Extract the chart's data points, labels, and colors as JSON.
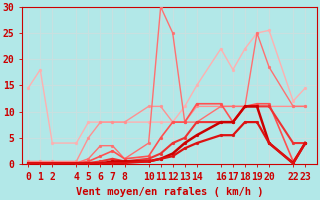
{
  "xlabel": "Vent moyen/en rafales ( km/h )",
  "background_color": "#b2e8e8",
  "grid_color": "#c8e0e0",
  "x_ticks": [
    0,
    1,
    2,
    4,
    5,
    6,
    7,
    8,
    10,
    11,
    12,
    13,
    14,
    16,
    17,
    18,
    19,
    20,
    22,
    23
  ],
  "x_values": [
    0,
    1,
    2,
    4,
    5,
    6,
    7,
    8,
    10,
    11,
    12,
    13,
    14,
    16,
    17,
    18,
    19,
    20,
    22,
    23
  ],
  "series": [
    {
      "y": [
        14.5,
        18.0,
        4.0,
        4.0,
        8.0,
        8.0,
        8.0,
        8.0,
        8.0,
        8.0,
        8.0,
        11.0,
        15.0,
        22.0,
        18.0,
        22.0,
        25.0,
        25.5,
        12.0,
        14.5
      ],
      "color": "#ffb0b0",
      "lw": 1.0
    },
    {
      "y": [
        0.5,
        0.5,
        0.5,
        0.5,
        5.0,
        8.0,
        8.0,
        8.0,
        11.0,
        11.0,
        8.0,
        8.0,
        11.0,
        11.0,
        11.0,
        11.0,
        11.0,
        11.0,
        11.0,
        11.0
      ],
      "color": "#ff9090",
      "lw": 1.0
    },
    {
      "y": [
        0.2,
        0.2,
        0.2,
        0.2,
        1.0,
        3.5,
        3.5,
        1.0,
        4.0,
        30.0,
        25.0,
        8.0,
        8.0,
        11.0,
        11.0,
        11.0,
        25.0,
        18.5,
        11.0,
        11.0
      ],
      "color": "#ff7070",
      "lw": 1.0
    },
    {
      "y": [
        0.2,
        0.2,
        0.2,
        0.2,
        0.5,
        1.5,
        2.5,
        1.0,
        1.5,
        5.0,
        8.0,
        8.0,
        11.5,
        11.5,
        8.0,
        11.0,
        11.5,
        11.5,
        0.5,
        4.0
      ],
      "color": "#ff5050",
      "lw": 1.2
    },
    {
      "y": [
        0.2,
        0.2,
        0.2,
        0.2,
        0.2,
        0.5,
        1.0,
        0.5,
        1.0,
        2.0,
        4.0,
        5.0,
        8.0,
        8.0,
        8.0,
        11.0,
        11.0,
        11.0,
        4.0,
        4.0
      ],
      "color": "#ee3333",
      "lw": 1.5
    },
    {
      "y": [
        0.1,
        0.1,
        0.1,
        0.1,
        0.1,
        0.1,
        0.5,
        0.5,
        0.5,
        1.0,
        2.0,
        4.0,
        5.5,
        8.0,
        8.0,
        11.0,
        11.0,
        4.0,
        0.2,
        4.0
      ],
      "color": "#cc0000",
      "lw": 1.8
    },
    {
      "y": [
        0.1,
        0.1,
        0.1,
        0.1,
        0.1,
        0.1,
        0.2,
        0.2,
        0.5,
        1.0,
        1.5,
        3.0,
        4.0,
        5.5,
        5.5,
        8.0,
        8.0,
        4.0,
        0.1,
        4.0
      ],
      "color": "#dd1111",
      "lw": 1.6
    }
  ],
  "ylim": [
    0,
    30
  ],
  "yticks": [
    0,
    5,
    10,
    15,
    20,
    25,
    30
  ],
  "xlabel_color": "#cc0000",
  "xlabel_fontsize": 7.5,
  "tick_fontsize": 7.0,
  "tick_color": "#cc0000",
  "marker": "o",
  "markersize": 2.0
}
